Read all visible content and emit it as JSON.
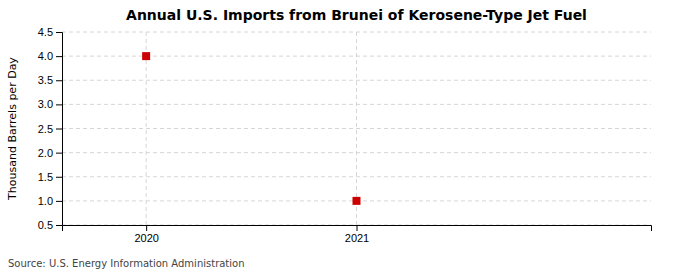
{
  "chart_data": {
    "type": "scatter",
    "title": "Annual U.S. Imports from Brunei of Kerosene-Type Jet Fuel",
    "y_label": "Thousand Barrels per Day",
    "annotations": [
      "Source: U.S. Energy Information Administration"
    ],
    "x": [
      2020,
      2021
    ],
    "values": [
      4.0,
      1.0
    ],
    "color": "#cc0000",
    "marker": "square",
    "xlim": [
      2019.6,
      2022.4
    ],
    "ylim": [
      0.5,
      4.5
    ],
    "xticks": [
      2020,
      2021
    ],
    "yticks": [
      0.5,
      {
        "value": 1.0,
        "label": "1.0"
      },
      1.5,
      {
        "value": 2.0,
        "label": "2.0"
      },
      2.5,
      {
        "value": 3.0,
        "label": "3.0"
      },
      3.5,
      {
        "value": 4.0,
        "label": "4.0"
      },
      4.5
    ],
    "grid": true
  }
}
